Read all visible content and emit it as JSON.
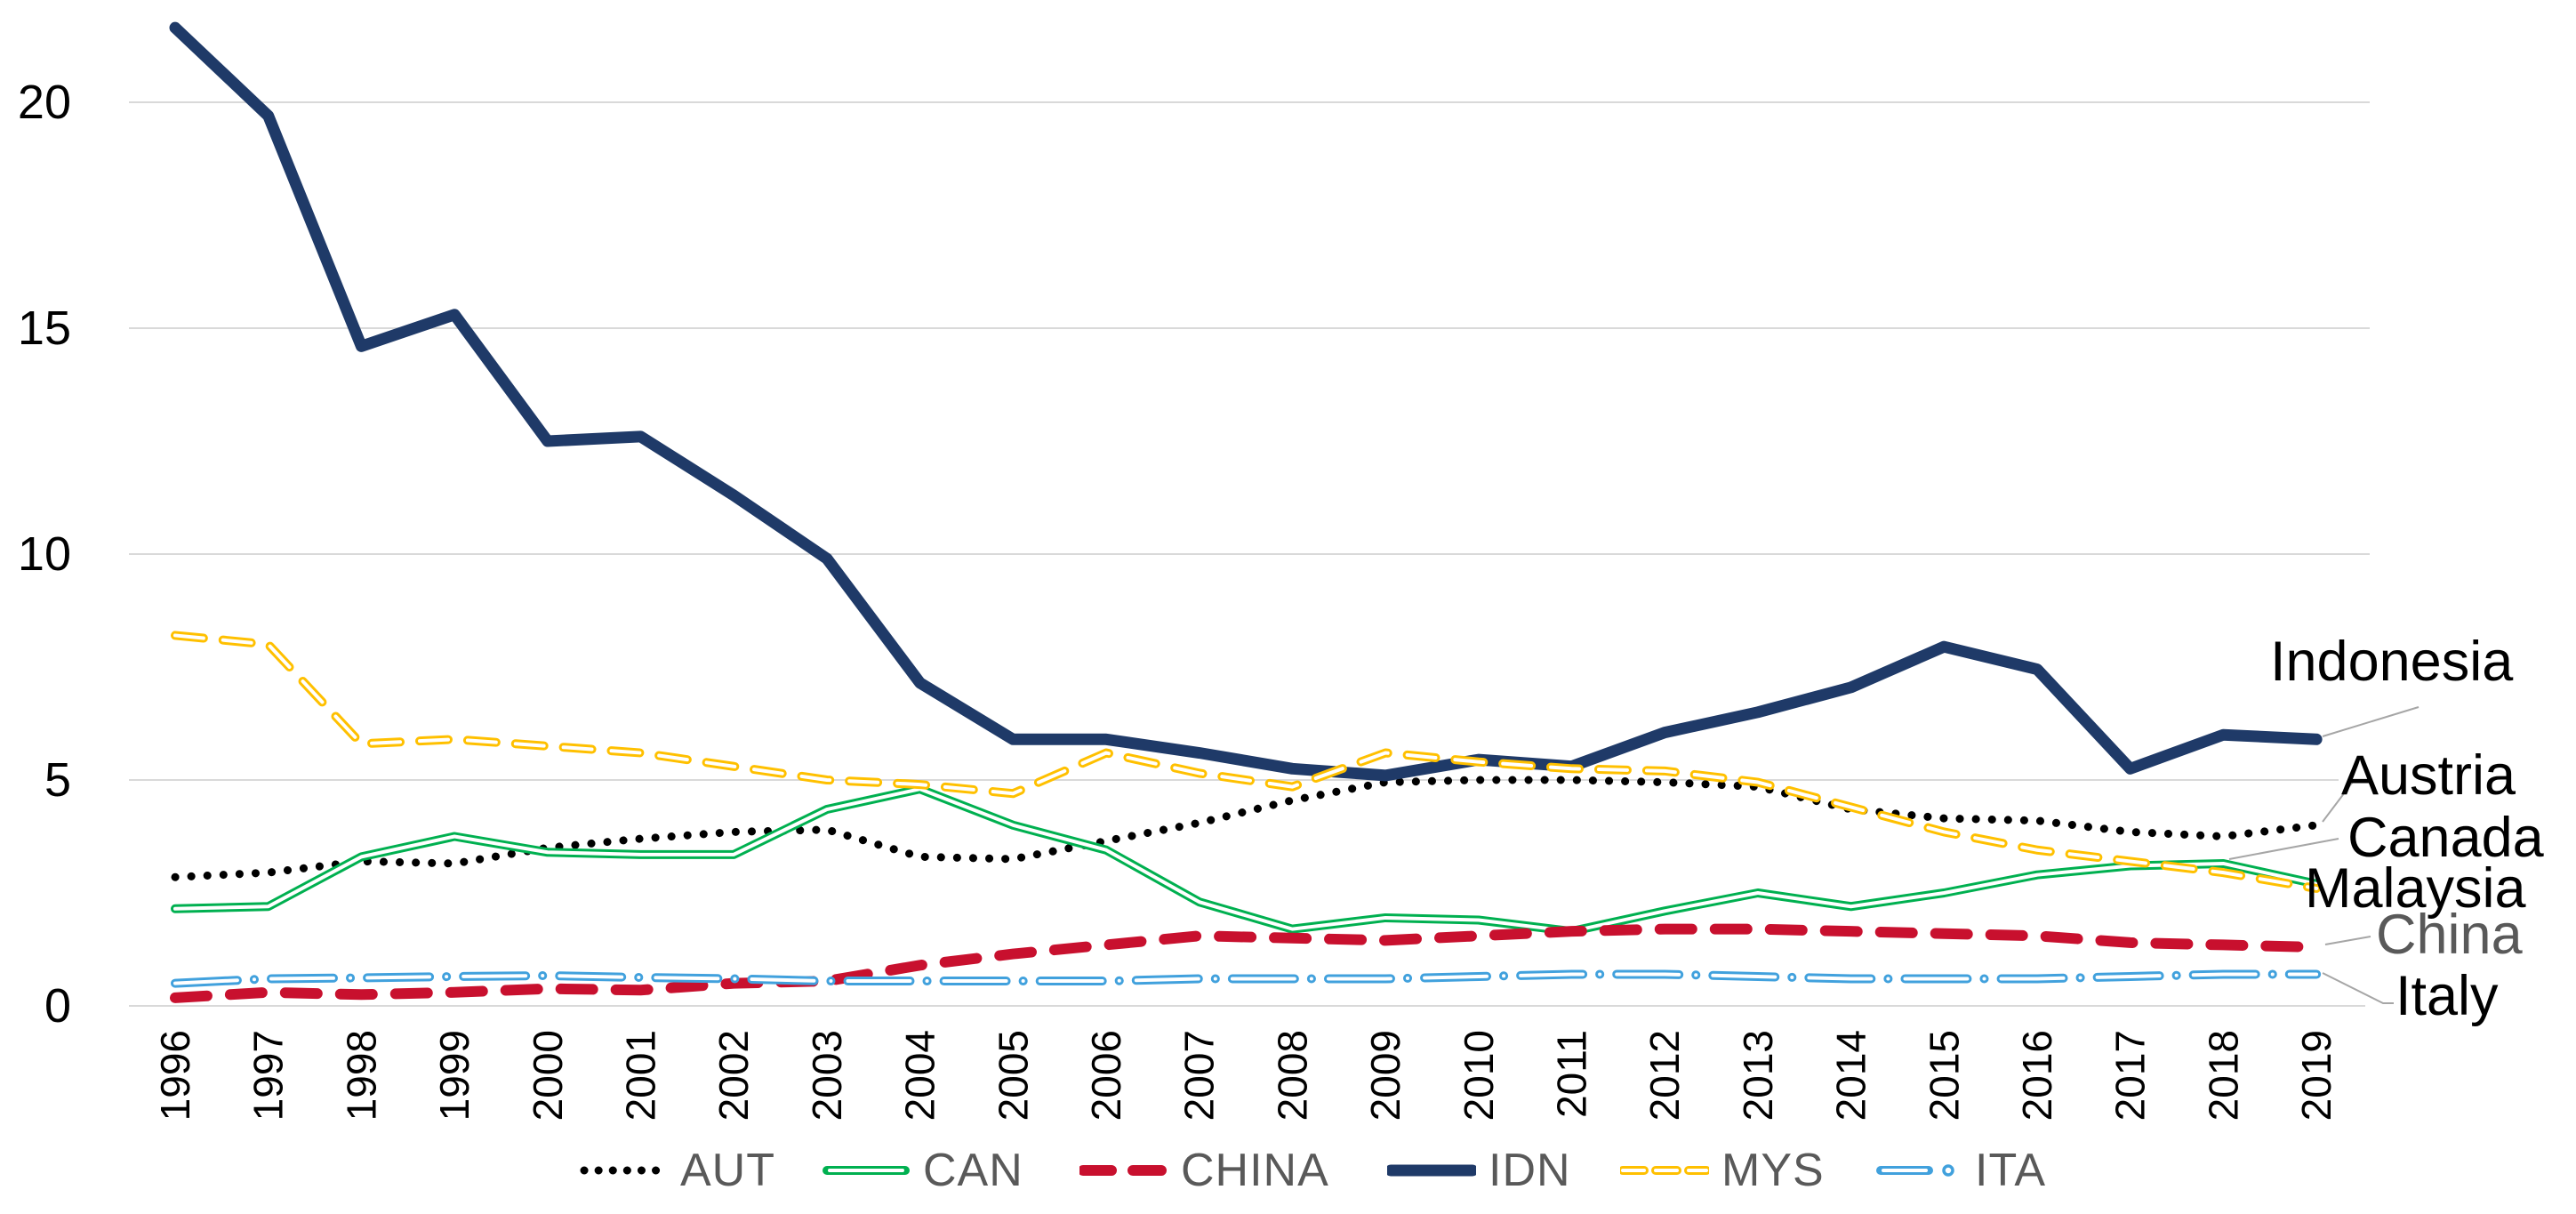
{
  "chart_data": {
    "type": "line",
    "title": "",
    "xlabel": "",
    "ylabel": "",
    "x": [
      "1996",
      "1997",
      "1998",
      "1999",
      "2000",
      "2001",
      "2002",
      "2003",
      "2004",
      "2005",
      "2006",
      "2007",
      "2008",
      "2009",
      "2010",
      "2011",
      "2012",
      "2013",
      "2014",
      "2015",
      "2016",
      "2017",
      "2018",
      "2019"
    ],
    "yticks": [
      0,
      5,
      10,
      15,
      20
    ],
    "ylim": [
      0,
      22
    ],
    "grid": true,
    "legend_position": "bottom-center",
    "background_color": "#FFFFFF",
    "gridline_color": "#D9D9D9",
    "leader_line_color": "#A6A6A6",
    "axis_text_color": "#000000",
    "legend_text_color": "#595959",
    "series": [
      {
        "name": "AUT",
        "style": "dotted",
        "color": "#000000",
        "values": [
          2.85,
          2.95,
          3.2,
          3.15,
          3.5,
          3.7,
          3.85,
          3.9,
          3.3,
          3.25,
          3.65,
          4.05,
          4.55,
          4.95,
          5.0,
          5.0,
          4.95,
          4.85,
          4.35,
          4.15,
          4.1,
          3.85,
          3.75,
          4.0
        ],
        "end_label": {
          "text": "Austria",
          "color": "#000000"
        }
      },
      {
        "name": "CAN",
        "style": "double",
        "color": "#00B050",
        "values": [
          2.15,
          2.2,
          3.3,
          3.75,
          3.4,
          3.35,
          3.35,
          4.35,
          4.8,
          4.0,
          3.45,
          2.3,
          1.7,
          1.95,
          1.9,
          1.65,
          2.1,
          2.5,
          2.2,
          2.5,
          2.9,
          3.1,
          3.15,
          2.7
        ],
        "end_label": {
          "text": "Canada",
          "color": "#000000"
        }
      },
      {
        "name": "CHINA",
        "style": "dashed",
        "color": "#C8102E",
        "values": [
          0.18,
          0.3,
          0.25,
          0.3,
          0.38,
          0.35,
          0.5,
          0.55,
          0.9,
          1.15,
          1.35,
          1.55,
          1.5,
          1.45,
          1.55,
          1.65,
          1.7,
          1.7,
          1.65,
          1.6,
          1.55,
          1.4,
          1.35,
          1.3
        ],
        "end_label": {
          "text": "China",
          "color": "#595959"
        }
      },
      {
        "name": "IDN",
        "style": "solid",
        "color": "#1F3A68",
        "values": [
          21.65,
          19.7,
          14.6,
          15.3,
          12.5,
          12.6,
          11.3,
          9.9,
          7.15,
          5.9,
          5.9,
          5.6,
          5.25,
          5.1,
          5.45,
          5.3,
          6.05,
          6.5,
          7.05,
          7.95,
          7.45,
          5.25,
          6.0,
          5.9
        ],
        "end_label": {
          "text": "Indonesia",
          "color": "#000000"
        }
      },
      {
        "name": "MYS",
        "style": "dashed-hollow",
        "color": "#FFC000",
        "values": [
          8.2,
          8.0,
          5.8,
          5.9,
          5.75,
          5.6,
          5.3,
          5.0,
          4.9,
          4.7,
          5.6,
          5.15,
          4.85,
          5.6,
          5.4,
          5.25,
          5.2,
          4.95,
          4.4,
          3.85,
          3.45,
          3.2,
          2.95,
          2.6
        ],
        "end_label": {
          "text": "Malaysia",
          "color": "#000000"
        }
      },
      {
        "name": "ITA",
        "style": "dashdot-hollow",
        "color": "#41A1DD",
        "values": [
          0.5,
          0.6,
          0.62,
          0.65,
          0.67,
          0.63,
          0.6,
          0.55,
          0.55,
          0.55,
          0.55,
          0.6,
          0.6,
          0.6,
          0.65,
          0.7,
          0.7,
          0.65,
          0.6,
          0.6,
          0.6,
          0.65,
          0.7,
          0.7
        ],
        "end_label": {
          "text": "Italy",
          "color": "#000000"
        }
      }
    ]
  }
}
